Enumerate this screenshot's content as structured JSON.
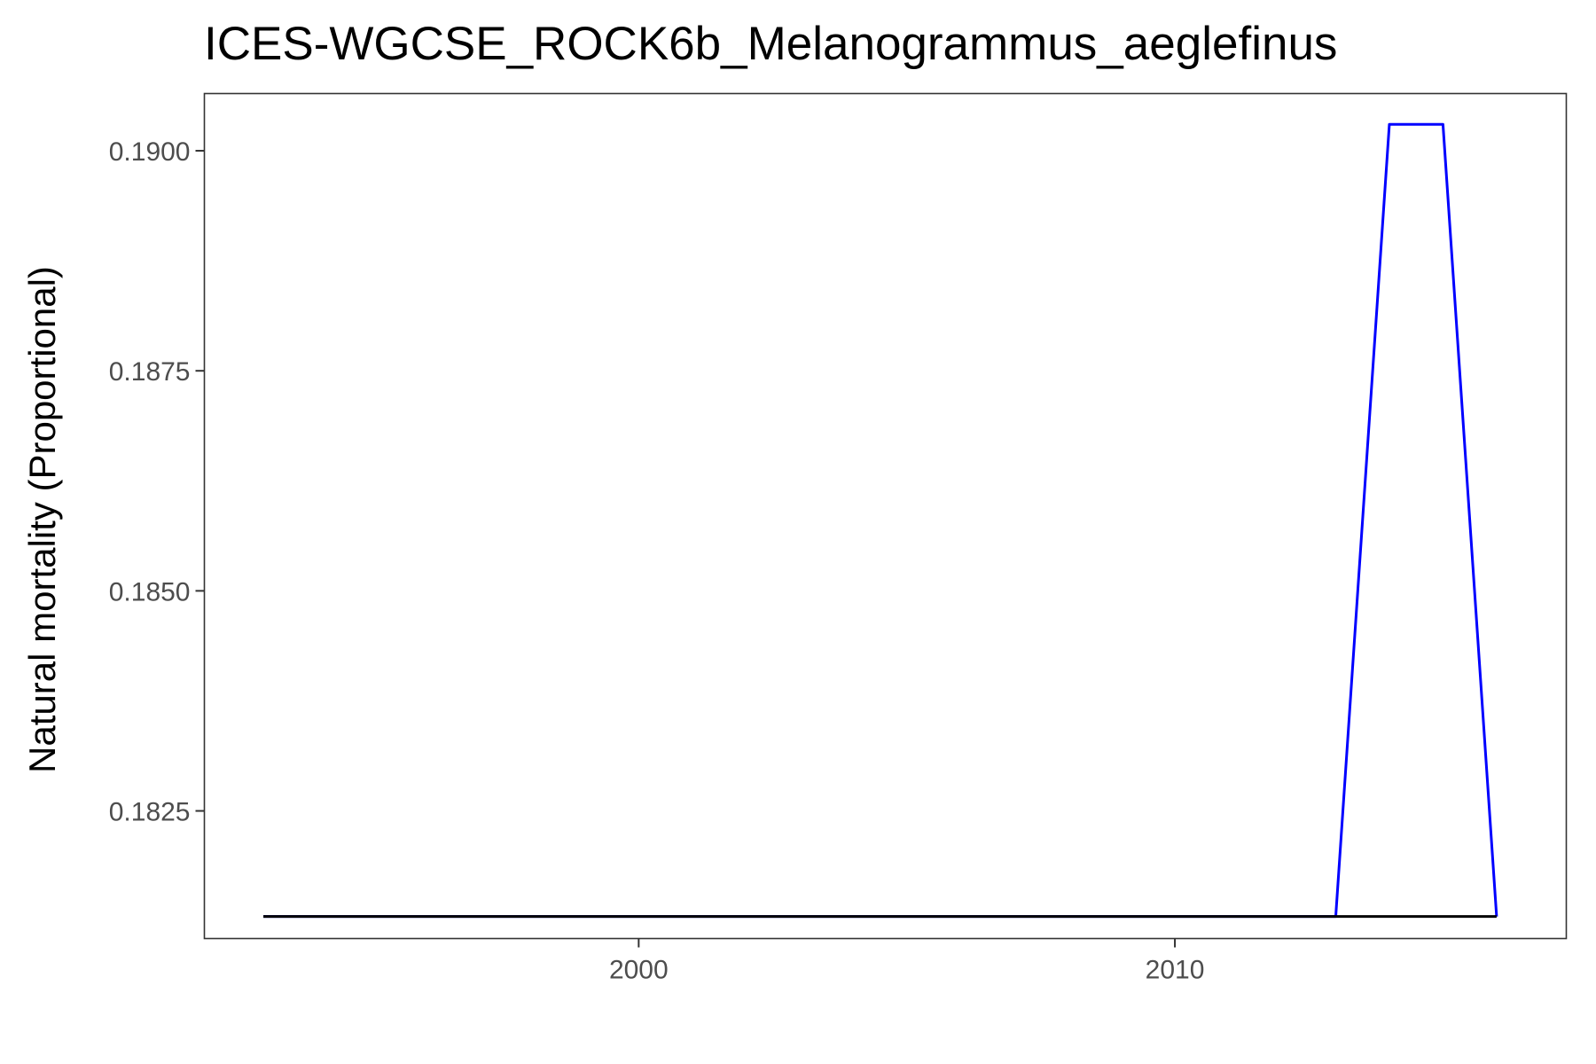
{
  "chart_data": {
    "type": "line",
    "title": "ICES-WGCSE_ROCK6b_Melanogrammus_aeglefinus",
    "xlabel": "",
    "ylabel": "Natural mortality (Proportional)",
    "xlim": [
      1991.9,
      2017.3
    ],
    "ylim": [
      0.18105,
      0.19065
    ],
    "x_ticks": [
      2000,
      2010
    ],
    "x_tick_labels": [
      "2000",
      "2010"
    ],
    "y_ticks": [
      0.1825,
      0.185,
      0.1875,
      0.19
    ],
    "y_tick_labels": [
      "0.1825",
      "0.1850",
      "0.1875",
      "0.1900"
    ],
    "grid": false,
    "legend": "none",
    "series": [
      {
        "color": "#0000ff",
        "x": [
          1993,
          1994,
          1995,
          1996,
          1997,
          1998,
          1999,
          2000,
          2001,
          2002,
          2003,
          2004,
          2005,
          2006,
          2007,
          2008,
          2009,
          2010,
          2011,
          2012,
          2013,
          2014,
          2015,
          2016
        ],
        "y": [
          0.1813,
          0.1813,
          0.1813,
          0.1813,
          0.1813,
          0.1813,
          0.1813,
          0.1813,
          0.1813,
          0.1813,
          0.1813,
          0.1813,
          0.1813,
          0.1813,
          0.1813,
          0.1813,
          0.1813,
          0.1813,
          0.1813,
          0.1813,
          0.1813,
          0.1903,
          0.1903,
          0.1813
        ]
      },
      {
        "color": "#000000",
        "x": [
          1993,
          1994,
          1995,
          1996,
          1997,
          1998,
          1999,
          2000,
          2001,
          2002,
          2003,
          2004,
          2005,
          2006,
          2007,
          2008,
          2009,
          2010,
          2011,
          2012,
          2013,
          2014,
          2015,
          2016
        ],
        "y": [
          0.1813,
          0.1813,
          0.1813,
          0.1813,
          0.1813,
          0.1813,
          0.1813,
          0.1813,
          0.1813,
          0.1813,
          0.1813,
          0.1813,
          0.1813,
          0.1813,
          0.1813,
          0.1813,
          0.1813,
          0.1813,
          0.1813,
          0.1813,
          0.1813,
          0.1813,
          0.1813,
          0.1813
        ]
      }
    ]
  }
}
